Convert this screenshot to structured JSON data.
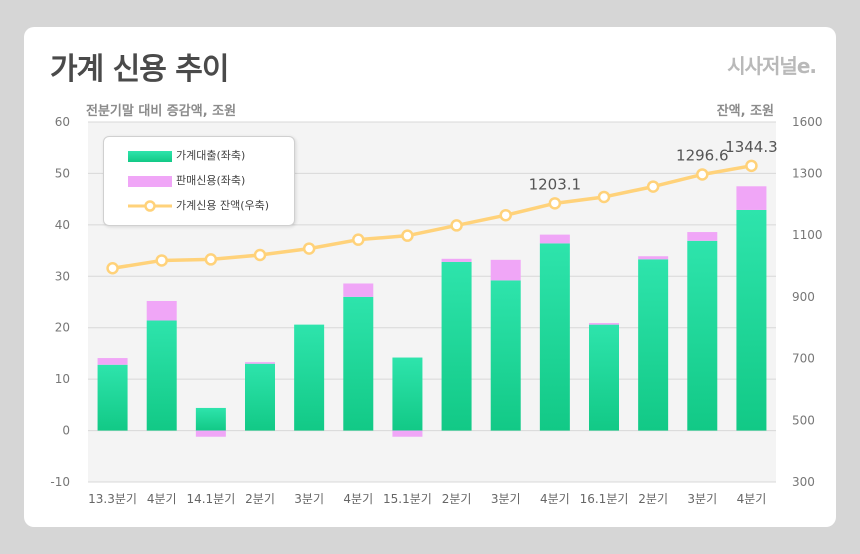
{
  "title": "가계 신용 추이",
  "brand": "시사저널e.",
  "left_unit": "전분기말 대비 증감액, 조원",
  "right_unit": "잔액, 조원",
  "colors": {
    "loan_top": "#2ee4ac",
    "loan_bottom": "#12c986",
    "sales": "#f0a6f7",
    "line": "#ffd27a",
    "grid": "#d8d8d8",
    "plot_bg": "#f4f4f4"
  },
  "legend": [
    {
      "label": "가계대출(좌축)",
      "icon": "teal-bar-swatch"
    },
    {
      "label": "판매신용(좌축)",
      "icon": "pink-bar-swatch"
    },
    {
      "label": "가계신용 잔액(우축)",
      "icon": "yellow-line-marker"
    }
  ],
  "chart_data": {
    "type": "bar",
    "categories": [
      "13.3분기",
      "4분기",
      "14.1분기",
      "2분기",
      "3분기",
      "4분기",
      "15.1분기",
      "2분기",
      "3분기",
      "4분기",
      "16.1분기",
      "2분기",
      "3분기",
      "4분기"
    ],
    "series": [
      {
        "name": "가계대출(좌축)",
        "type": "bar",
        "axis": "left",
        "stacked": true,
        "values": [
          12.8,
          21.4,
          4.4,
          13.0,
          20.6,
          26.0,
          14.2,
          32.8,
          29.2,
          36.4,
          20.6,
          33.3,
          36.9,
          42.9
        ]
      },
      {
        "name": "판매신용(좌축)",
        "type": "bar",
        "axis": "left",
        "stacked": true,
        "values": [
          1.3,
          3.8,
          -1.2,
          0.3,
          0.0,
          2.6,
          -1.2,
          0.6,
          4.0,
          1.7,
          0.3,
          0.6,
          1.7,
          4.6
        ]
      },
      {
        "name": "가계신용 잔액(우축)",
        "type": "line",
        "axis": "right",
        "values": [
          992.7,
          1018.0,
          1021.4,
          1035.7,
          1056.4,
          1085.3,
          1098.3,
          1131.5,
          1164.6,
          1203.1,
          1223.7,
          1257.3,
          1296.6,
          1344.3
        ]
      }
    ],
    "annotations": [
      {
        "index": 9,
        "text": "1203.1"
      },
      {
        "index": 12,
        "text": "1296.6"
      },
      {
        "index": 13,
        "text": "1344.3"
      }
    ],
    "left_axis": {
      "ylim": [
        -10,
        60
      ],
      "ticks": [
        "60",
        "50",
        "40",
        "30",
        "20",
        "10",
        "0",
        "-10"
      ]
    },
    "right_axis": {
      "ylim": [
        300,
        1600
      ],
      "ticks": [
        "1600",
        "1300",
        "1100",
        "900",
        "700",
        "500",
        "300"
      ]
    },
    "grid": "horizontal"
  }
}
